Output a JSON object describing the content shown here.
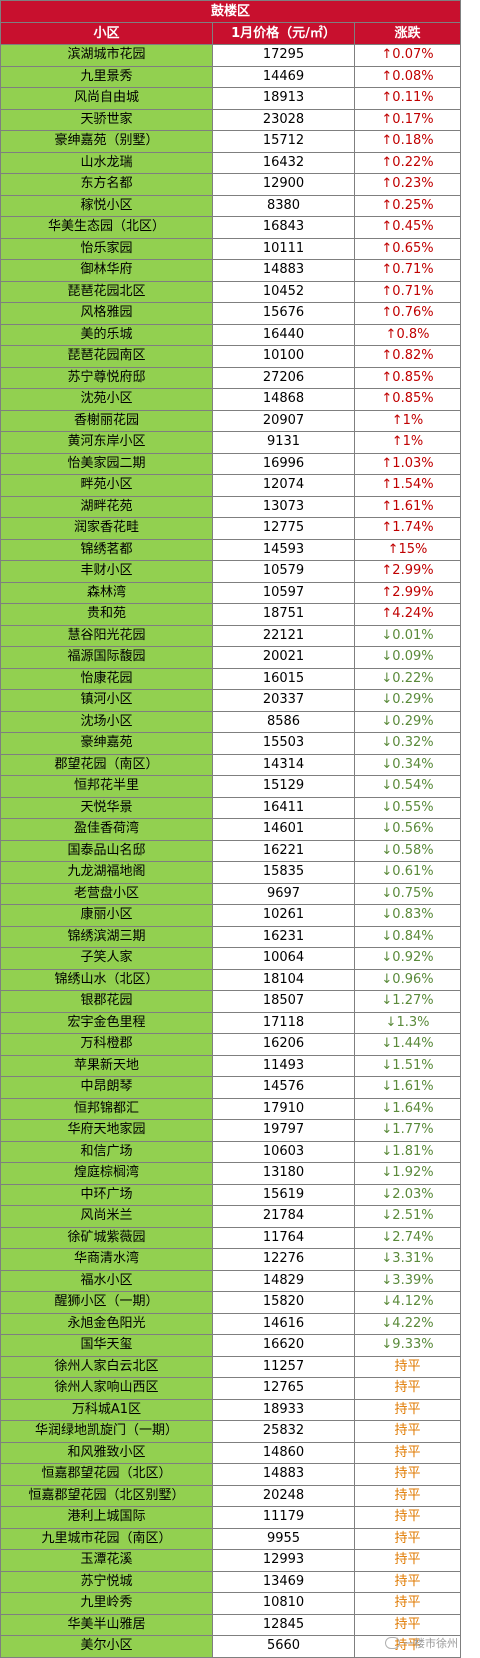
{
  "district": "鼓楼区",
  "headers": {
    "name": "小区",
    "price": "1月价格（元/㎡）",
    "change": "涨跌"
  },
  "colors": {
    "header_bg": "#c8102e",
    "name_bg": "#92d050",
    "up": "#c00000",
    "down": "#5a8a3a",
    "flat": "#e07a00"
  },
  "rows": [
    {
      "name": "滨湖城市花园",
      "price": "17295",
      "change": "↑0.07%",
      "dir": "up"
    },
    {
      "name": "九里景秀",
      "price": "14469",
      "change": "↑0.08%",
      "dir": "up"
    },
    {
      "name": "风尚自由城",
      "price": "18913",
      "change": "↑0.11%",
      "dir": "up"
    },
    {
      "name": "天骄世家",
      "price": "23028",
      "change": "↑0.17%",
      "dir": "up"
    },
    {
      "name": "豪绅嘉苑（别墅）",
      "price": "15712",
      "change": "↑0.18%",
      "dir": "up"
    },
    {
      "name": "山水龙瑞",
      "price": "16432",
      "change": "↑0.22%",
      "dir": "up"
    },
    {
      "name": "东方名都",
      "price": "12900",
      "change": "↑0.23%",
      "dir": "up"
    },
    {
      "name": "稼悦小区",
      "price": "8380",
      "change": "↑0.25%",
      "dir": "up"
    },
    {
      "name": "华美生态园（北区）",
      "price": "16843",
      "change": "↑0.45%",
      "dir": "up"
    },
    {
      "name": "怡乐家园",
      "price": "10111",
      "change": "↑0.65%",
      "dir": "up"
    },
    {
      "name": "御林华府",
      "price": "14883",
      "change": "↑0.71%",
      "dir": "up"
    },
    {
      "name": "琵琶花园北区",
      "price": "10452",
      "change": "↑0.71%",
      "dir": "up"
    },
    {
      "name": "风格雅园",
      "price": "15676",
      "change": "↑0.76%",
      "dir": "up"
    },
    {
      "name": "美的乐城",
      "price": "16440",
      "change": "↑0.8%",
      "dir": "up"
    },
    {
      "name": "琵琶花园南区",
      "price": "10100",
      "change": "↑0.82%",
      "dir": "up"
    },
    {
      "name": "苏宁尊悦府邸",
      "price": "27206",
      "change": "↑0.85%",
      "dir": "up"
    },
    {
      "name": "沈苑小区",
      "price": "14868",
      "change": "↑0.85%",
      "dir": "up"
    },
    {
      "name": "香榭丽花园",
      "price": "20907",
      "change": "↑1%",
      "dir": "up"
    },
    {
      "name": "黄河东岸小区",
      "price": "9131",
      "change": "↑1%",
      "dir": "up"
    },
    {
      "name": "怡美家园二期",
      "price": "16996",
      "change": "↑1.03%",
      "dir": "up"
    },
    {
      "name": "畔苑小区",
      "price": "12074",
      "change": "↑1.54%",
      "dir": "up"
    },
    {
      "name": "湖畔花苑",
      "price": "13073",
      "change": "↑1.61%",
      "dir": "up"
    },
    {
      "name": "润家香花畦",
      "price": "12775",
      "change": "↑1.74%",
      "dir": "up"
    },
    {
      "name": "锦绣茗都",
      "price": "14593",
      "change": "↑15%",
      "dir": "up"
    },
    {
      "name": "丰财小区",
      "price": "10579",
      "change": "↑2.99%",
      "dir": "up"
    },
    {
      "name": "森林湾",
      "price": "10597",
      "change": "↑2.99%",
      "dir": "up"
    },
    {
      "name": "贵和苑",
      "price": "18751",
      "change": "↑4.24%",
      "dir": "up"
    },
    {
      "name": "慧谷阳光花园",
      "price": "22121",
      "change": "↓0.01%",
      "dir": "down"
    },
    {
      "name": "福源国际馥园",
      "price": "20021",
      "change": "↓0.09%",
      "dir": "down"
    },
    {
      "name": "怡康花园",
      "price": "16015",
      "change": "↓0.22%",
      "dir": "down"
    },
    {
      "name": "镇河小区",
      "price": "20337",
      "change": "↓0.29%",
      "dir": "down"
    },
    {
      "name": "沈场小区",
      "price": "8586",
      "change": "↓0.29%",
      "dir": "down"
    },
    {
      "name": "豪绅嘉苑",
      "price": "15503",
      "change": "↓0.32%",
      "dir": "down"
    },
    {
      "name": "郡望花园（南区）",
      "price": "14314",
      "change": "↓0.34%",
      "dir": "down"
    },
    {
      "name": "恒邦花半里",
      "price": "15129",
      "change": "↓0.54%",
      "dir": "down"
    },
    {
      "name": "天悦华景",
      "price": "16411",
      "change": "↓0.55%",
      "dir": "down"
    },
    {
      "name": "盈佳香荷湾",
      "price": "14601",
      "change": "↓0.56%",
      "dir": "down"
    },
    {
      "name": "国泰品山名邸",
      "price": "16221",
      "change": "↓0.58%",
      "dir": "down"
    },
    {
      "name": "九龙湖福地阁",
      "price": "15835",
      "change": "↓0.61%",
      "dir": "down"
    },
    {
      "name": "老营盘小区",
      "price": "9697",
      "change": "↓0.75%",
      "dir": "down"
    },
    {
      "name": "康丽小区",
      "price": "10261",
      "change": "↓0.83%",
      "dir": "down"
    },
    {
      "name": "锦绣滨湖三期",
      "price": "16231",
      "change": "↓0.84%",
      "dir": "down"
    },
    {
      "name": "子笑人家",
      "price": "10064",
      "change": "↓0.92%",
      "dir": "down"
    },
    {
      "name": "锦绣山水（北区）",
      "price": "18104",
      "change": "↓0.96%",
      "dir": "down"
    },
    {
      "name": "银郡花园",
      "price": "18507",
      "change": "↓1.27%",
      "dir": "down"
    },
    {
      "name": "宏宇金色里程",
      "price": "17118",
      "change": "↓1.3%",
      "dir": "down"
    },
    {
      "name": "万科橙郡",
      "price": "16206",
      "change": "↓1.44%",
      "dir": "down"
    },
    {
      "name": "苹果新天地",
      "price": "11493",
      "change": "↓1.51%",
      "dir": "down"
    },
    {
      "name": "中昂朗琴",
      "price": "14576",
      "change": "↓1.61%",
      "dir": "down"
    },
    {
      "name": "恒邦锦都汇",
      "price": "17910",
      "change": "↓1.64%",
      "dir": "down"
    },
    {
      "name": "华府天地家园",
      "price": "19797",
      "change": "↓1.77%",
      "dir": "down"
    },
    {
      "name": "和信广场",
      "price": "10603",
      "change": "↓1.81%",
      "dir": "down"
    },
    {
      "name": "煌庭棕榈湾",
      "price": "13180",
      "change": "↓1.92%",
      "dir": "down"
    },
    {
      "name": "中环广场",
      "price": "15619",
      "change": "↓2.03%",
      "dir": "down"
    },
    {
      "name": "风尚米兰",
      "price": "21784",
      "change": "↓2.51%",
      "dir": "down"
    },
    {
      "name": "徐矿城紫薇园",
      "price": "11764",
      "change": "↓2.74%",
      "dir": "down"
    },
    {
      "name": "华商清水湾",
      "price": "12276",
      "change": "↓3.31%",
      "dir": "down"
    },
    {
      "name": "福水小区",
      "price": "14829",
      "change": "↓3.39%",
      "dir": "down"
    },
    {
      "name": "醒狮小区（一期）",
      "price": "15820",
      "change": "↓4.12%",
      "dir": "down"
    },
    {
      "name": "永旭金色阳光",
      "price": "14616",
      "change": "↓4.22%",
      "dir": "down"
    },
    {
      "name": "国华天玺",
      "price": "16620",
      "change": "↓9.33%",
      "dir": "down"
    },
    {
      "name": "徐州人家白云北区",
      "price": "11257",
      "change": "持平",
      "dir": "flat"
    },
    {
      "name": "徐州人家响山西区",
      "price": "12765",
      "change": "持平",
      "dir": "flat"
    },
    {
      "name": "万科城A1区",
      "price": "18933",
      "change": "持平",
      "dir": "flat"
    },
    {
      "name": "华润绿地凯旋门（一期）",
      "price": "25832",
      "change": "持平",
      "dir": "flat"
    },
    {
      "name": "和风雅致小区",
      "price": "14860",
      "change": "持平",
      "dir": "flat"
    },
    {
      "name": "恒嘉郡望花园（北区）",
      "price": "14883",
      "change": "持平",
      "dir": "flat"
    },
    {
      "name": "恒嘉郡望花园（北区别墅）",
      "price": "20248",
      "change": "持平",
      "dir": "flat"
    },
    {
      "name": "港利上城国际",
      "price": "11179",
      "change": "持平",
      "dir": "flat"
    },
    {
      "name": "九里城市花园（南区）",
      "price": "9955",
      "change": "持平",
      "dir": "flat"
    },
    {
      "name": "玉潭花溪",
      "price": "12993",
      "change": "持平",
      "dir": "flat"
    },
    {
      "name": "苏宁悦城",
      "price": "13469",
      "change": "持平",
      "dir": "flat"
    },
    {
      "name": "九里岭秀",
      "price": "10810",
      "change": "持平",
      "dir": "flat"
    },
    {
      "name": "华美半山雅居",
      "price": "12845",
      "change": "持平",
      "dir": "flat"
    },
    {
      "name": "美尔小区",
      "price": "5660",
      "change": "持平",
      "dir": "flat"
    }
  ],
  "watermark": "一楼市徐州"
}
